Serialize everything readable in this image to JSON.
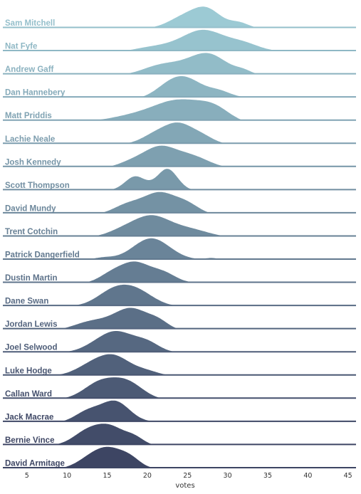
{
  "chart_data": {
    "type": "area",
    "subtype": "ridgeline-density",
    "xlabel": "votes",
    "xlim": [
      2,
      46
    ],
    "xticks": [
      5,
      10,
      15,
      20,
      25,
      30,
      35,
      40,
      45
    ],
    "grid": false,
    "legend": "none",
    "palette": {
      "light": "#9ccad4",
      "dark": "#3d4563"
    },
    "series": [
      {
        "name": "Sam Mitchell",
        "range": [
          20,
          34
        ],
        "peaks": [
          [
            24.5,
            0.6,
            2.0
          ],
          [
            27.5,
            1.0,
            1.8
          ],
          [
            31.5,
            0.3,
            1.2
          ]
        ]
      },
      {
        "name": "Nat Fyfe",
        "range": [
          17,
          38
        ],
        "peaks": [
          [
            21,
            0.3,
            3.0
          ],
          [
            27,
            1.0,
            2.6
          ],
          [
            32,
            0.35,
            2.0
          ]
        ]
      },
      {
        "name": "Andrew Gaff",
        "range": [
          17,
          34
        ],
        "peaks": [
          [
            22,
            0.5,
            2.5
          ],
          [
            27.5,
            1.0,
            2.4
          ],
          [
            32,
            0.15,
            1.0
          ]
        ]
      },
      {
        "name": "Dan Hannebery",
        "range": [
          19,
          33
        ],
        "peaks": [
          [
            22.5,
            0.55,
            1.8
          ],
          [
            25,
            1.0,
            2.0
          ],
          [
            29,
            0.35,
            1.5
          ]
        ]
      },
      {
        "name": "Matt Priddis",
        "range": [
          13,
          32
        ],
        "peaks": [
          [
            18,
            0.25,
            3.0
          ],
          [
            24,
            1.0,
            3.2
          ],
          [
            28.5,
            0.5,
            2.0
          ]
        ]
      },
      {
        "name": "Lachie Neale",
        "range": [
          17,
          30
        ],
        "peaks": [
          [
            21,
            0.5,
            1.8
          ],
          [
            24,
            1.0,
            1.8
          ],
          [
            27,
            0.35,
            1.5
          ]
        ]
      },
      {
        "name": "Josh Kennedy",
        "range": [
          15,
          30
        ],
        "peaks": [
          [
            18,
            0.3,
            1.8
          ],
          [
            21.5,
            1.0,
            2.0
          ],
          [
            25.5,
            0.6,
            2.2
          ]
        ]
      },
      {
        "name": "Scott Thompson",
        "range": [
          15,
          26
        ],
        "peaks": [
          [
            18.5,
            0.65,
            1.3
          ],
          [
            22.5,
            1.0,
            1.3
          ]
        ]
      },
      {
        "name": "David Mundy",
        "range": [
          14,
          28
        ],
        "peaks": [
          [
            17.5,
            0.45,
            1.8
          ],
          [
            21.5,
            1.0,
            2.0
          ],
          [
            25,
            0.45,
            1.6
          ]
        ]
      },
      {
        "name": "Trent Cotchin",
        "range": [
          13,
          30
        ],
        "peaks": [
          [
            17,
            0.35,
            2.0
          ],
          [
            20.5,
            1.0,
            2.2
          ],
          [
            25,
            0.45,
            2.6
          ]
        ]
      },
      {
        "name": "Patrick Dangerfield",
        "range": [
          12,
          30
        ],
        "peaks": [
          [
            14.5,
            0.1,
            1.2
          ],
          [
            20.5,
            1.0,
            2.3
          ],
          [
            28,
            0.08,
            0.8
          ]
        ]
      },
      {
        "name": "Dustin Martin",
        "range": [
          12,
          27
        ],
        "peaks": [
          [
            15.5,
            0.45,
            1.6
          ],
          [
            18.5,
            1.0,
            1.8
          ],
          [
            22,
            0.5,
            1.6
          ]
        ]
      },
      {
        "name": "Dane Swan",
        "range": [
          10,
          24
        ],
        "peaks": [
          [
            15.5,
            0.7,
            2.0
          ],
          [
            18.5,
            0.9,
            2.2
          ]
        ]
      },
      {
        "name": "Jordan Lewis",
        "range": [
          9,
          24
        ],
        "peaks": [
          [
            13,
            0.4,
            2.2
          ],
          [
            18,
            1.0,
            2.2
          ],
          [
            21.5,
            0.3,
            1.3
          ]
        ]
      },
      {
        "name": "Joel Selwood",
        "range": [
          9,
          24
        ],
        "peaks": [
          [
            14,
            0.45,
            2.0
          ],
          [
            16.5,
            1.0,
            2.0
          ],
          [
            20,
            0.55,
            1.6
          ]
        ]
      },
      {
        "name": "Luke Hodge",
        "range": [
          8,
          23
        ],
        "peaks": [
          [
            13,
            0.55,
            2.0
          ],
          [
            16,
            1.0,
            2.0
          ],
          [
            20,
            0.25,
            1.6
          ]
        ]
      },
      {
        "name": "Callan Ward",
        "range": [
          9,
          22
        ],
        "peaks": [
          [
            14,
            0.8,
            2.0
          ],
          [
            17.5,
            0.85,
            2.0
          ]
        ]
      },
      {
        "name": "Jack Macrae",
        "range": [
          9,
          22
        ],
        "peaks": [
          [
            12.5,
            0.5,
            1.6
          ],
          [
            16,
            1.0,
            1.8
          ]
        ]
      },
      {
        "name": "Bernie Vince",
        "range": [
          8,
          21
        ],
        "peaks": [
          [
            12.5,
            0.7,
            1.8
          ],
          [
            15.5,
            0.9,
            1.8
          ],
          [
            18.5,
            0.35,
            1.2
          ]
        ]
      },
      {
        "name": "David Armitage",
        "range": [
          9,
          21
        ],
        "peaks": [
          [
            13,
            0.6,
            1.8
          ],
          [
            15.5,
            1.0,
            1.8
          ],
          [
            18,
            0.45,
            1.3
          ]
        ]
      }
    ]
  }
}
